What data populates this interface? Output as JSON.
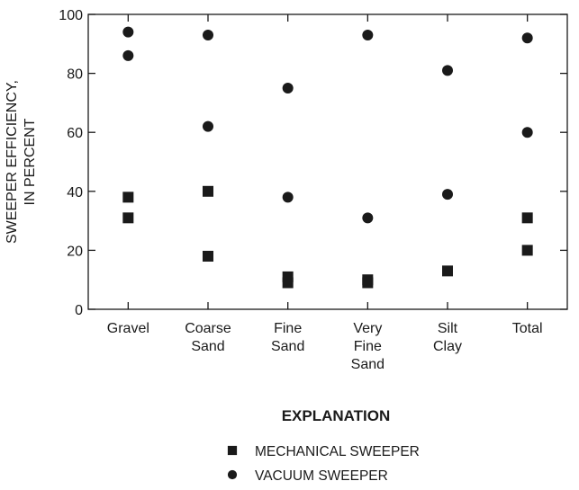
{
  "chart_data": {
    "type": "scatter",
    "categories": [
      [
        "Gravel"
      ],
      [
        "Coarse",
        "Sand"
      ],
      [
        "Fine",
        "Sand"
      ],
      [
        "Very",
        "Fine",
        "Sand"
      ],
      [
        "Silt",
        "Clay"
      ],
      [
        "Total"
      ]
    ],
    "ylabel": [
      "SWEEPER EFFICIENCY,",
      "IN PERCENT"
    ],
    "ylim": [
      0,
      100
    ],
    "yticks": [
      0,
      20,
      40,
      60,
      80,
      100
    ],
    "grid": false,
    "legend": {
      "title": "EXPLANATION",
      "placement": "bottom-center"
    },
    "series": [
      {
        "name": "MECHANICAL SWEEPER",
        "marker": "square",
        "color": "#1a1a1a",
        "points": [
          {
            "category": 0,
            "y": 38
          },
          {
            "category": 0,
            "y": 31
          },
          {
            "category": 1,
            "y": 40
          },
          {
            "category": 1,
            "y": 18
          },
          {
            "category": 2,
            "y": 11
          },
          {
            "category": 2,
            "y": 9
          },
          {
            "category": 3,
            "y": 10
          },
          {
            "category": 3,
            "y": 9
          },
          {
            "category": 4,
            "y": 13
          },
          {
            "category": 5,
            "y": 31
          },
          {
            "category": 5,
            "y": 20
          }
        ]
      },
      {
        "name": "VACUUM SWEEPER",
        "marker": "circle",
        "color": "#1a1a1a",
        "points": [
          {
            "category": 0,
            "y": 94
          },
          {
            "category": 0,
            "y": 86
          },
          {
            "category": 1,
            "y": 93
          },
          {
            "category": 1,
            "y": 62
          },
          {
            "category": 2,
            "y": 75
          },
          {
            "category": 2,
            "y": 38
          },
          {
            "category": 3,
            "y": 93
          },
          {
            "category": 3,
            "y": 31
          },
          {
            "category": 4,
            "y": 81
          },
          {
            "category": 4,
            "y": 39
          },
          {
            "category": 5,
            "y": 92
          },
          {
            "category": 5,
            "y": 60
          }
        ]
      }
    ]
  }
}
